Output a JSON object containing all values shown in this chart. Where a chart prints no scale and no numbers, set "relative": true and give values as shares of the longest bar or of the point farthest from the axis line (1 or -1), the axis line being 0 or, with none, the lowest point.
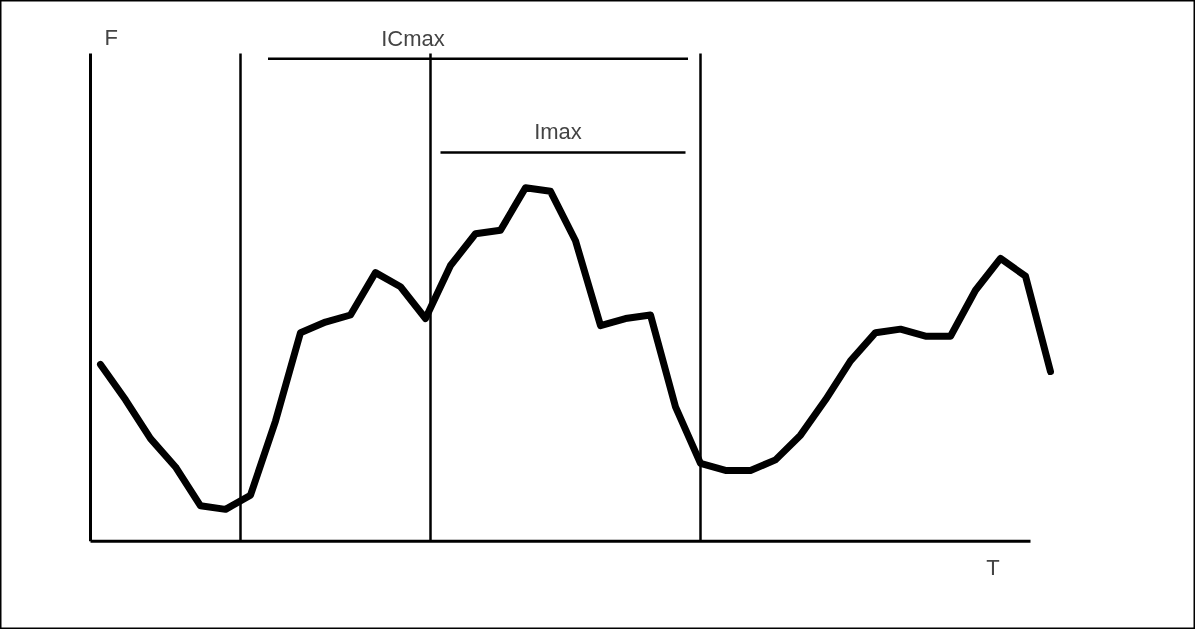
{
  "chart_data": {
    "type": "line",
    "relative": true,
    "xlabel": "T",
    "tick_labels": false,
    "marker": "none",
    "line_style": "solid",
    "annotations": [
      "ICmax",
      "Imax",
      "F"
    ],
    "categories": [
      null,
      null,
      null,
      null,
      null,
      null,
      null,
      null,
      null,
      null,
      null,
      null,
      null,
      null,
      null,
      null,
      null,
      null,
      null,
      null,
      null,
      null,
      null,
      null,
      null,
      null,
      null,
      null,
      null,
      null,
      null,
      null,
      null,
      null,
      null,
      null,
      null,
      null,
      null
    ],
    "series": [
      {
        "color": "#000000",
        "values": [
          0.5,
          0.4,
          0.29,
          0.21,
          0.1,
          0.09,
          0.13,
          0.34,
          0.59,
          0.62,
          0.64,
          0.76,
          0.72,
          0.63,
          0.78,
          0.87,
          0.88,
          1.0,
          0.99,
          0.85,
          0.61,
          0.63,
          0.64,
          0.38,
          0.22,
          0.2,
          0.2,
          0.23,
          0.3,
          0.4,
          0.51,
          0.59,
          0.6,
          0.58,
          0.58,
          0.71,
          0.8,
          0.75,
          0.48
        ]
      }
    ]
  }
}
